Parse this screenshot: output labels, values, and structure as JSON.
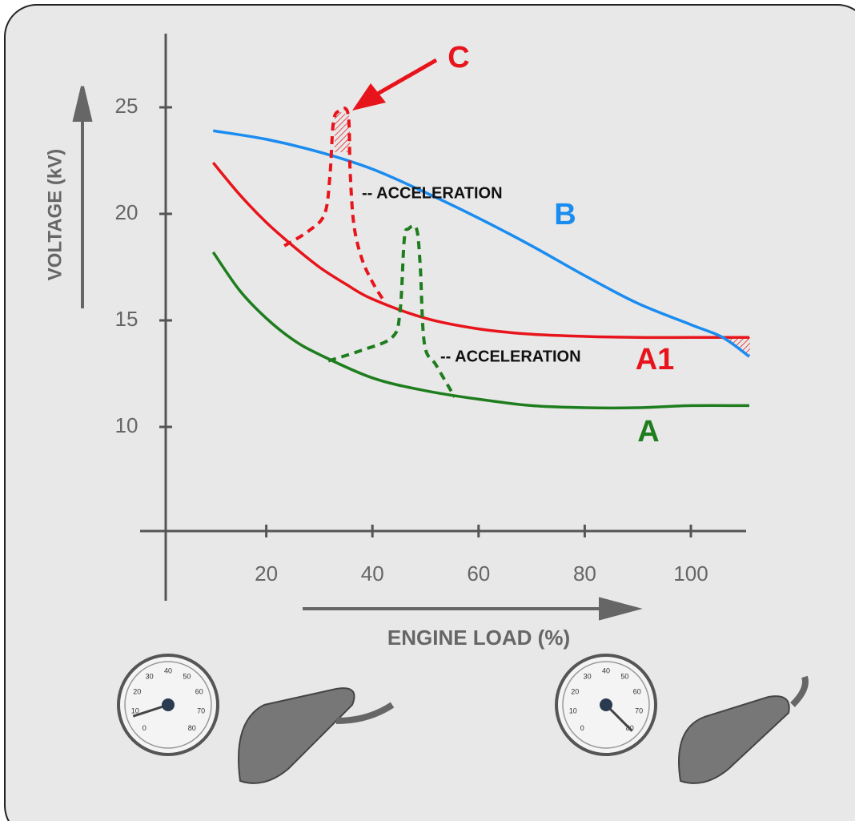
{
  "chart_data": {
    "type": "line",
    "ylabel": "VOLTAGE (kV)",
    "xlabel": "ENGINE LOAD (%)",
    "xlim": [
      1,
      110
    ],
    "ylim": [
      5,
      28.5
    ],
    "xticks": [
      20,
      40,
      60,
      80,
      100
    ],
    "yticks": [
      10,
      15,
      20,
      25
    ],
    "series": [
      {
        "name": "A",
        "color": "#1e7d1e",
        "dashed": false,
        "x": [
          10,
          15,
          20,
          25,
          30,
          40,
          50,
          60,
          70,
          80,
          90,
          100,
          111
        ],
        "values": [
          18.2,
          16.4,
          15.1,
          14.1,
          13.4,
          12.3,
          11.7,
          11.3,
          11.0,
          10.9,
          10.9,
          11.0,
          11.0
        ]
      },
      {
        "name": "A1",
        "color": "#e8141b",
        "dashed": false,
        "x": [
          10,
          15,
          20,
          25,
          30,
          35,
          40,
          50,
          60,
          70,
          80,
          90,
          100,
          111
        ],
        "values": [
          22.4,
          20.9,
          19.6,
          18.5,
          17.5,
          16.7,
          16.0,
          15.1,
          14.6,
          14.35,
          14.25,
          14.2,
          14.2,
          14.2
        ]
      },
      {
        "name": "B",
        "color": "#1a8cf0",
        "dashed": false,
        "x": [
          10,
          20,
          30,
          40,
          50,
          60,
          70,
          80,
          90,
          100,
          106,
          111
        ],
        "values": [
          23.9,
          23.5,
          22.9,
          22.1,
          21.0,
          19.8,
          18.5,
          17.1,
          15.8,
          14.8,
          14.2,
          13.3
        ]
      },
      {
        "color": "#e8141b",
        "dashed": true,
        "x": [
          23.4,
          28,
          31,
          32,
          32.6,
          33.5,
          35.4,
          35.8,
          36.5,
          38,
          40,
          42.2
        ],
        "values": [
          18.5,
          19.2,
          20.0,
          21.8,
          24.2,
          24.8,
          24.7,
          22,
          19.5,
          17.9,
          16.8,
          15.9
        ]
      },
      {
        "color": "#1e7d1e",
        "dashed": true,
        "x": [
          31.7,
          38,
          43.7,
          45.2,
          46,
          46.8,
          48.3,
          49,
          49.8,
          52,
          55.5
        ],
        "values": [
          13.1,
          13.6,
          14.2,
          15.4,
          18.8,
          19.3,
          19.3,
          17.6,
          13.9,
          12.9,
          11.4
        ]
      }
    ],
    "annotations": [
      "-- ACCELERATION",
      "-- ACCELERATION",
      "C"
    ]
  },
  "gauge_scale": [
    "0",
    "10",
    "20",
    "30",
    "40",
    "50",
    "60",
    "70",
    "80"
  ]
}
